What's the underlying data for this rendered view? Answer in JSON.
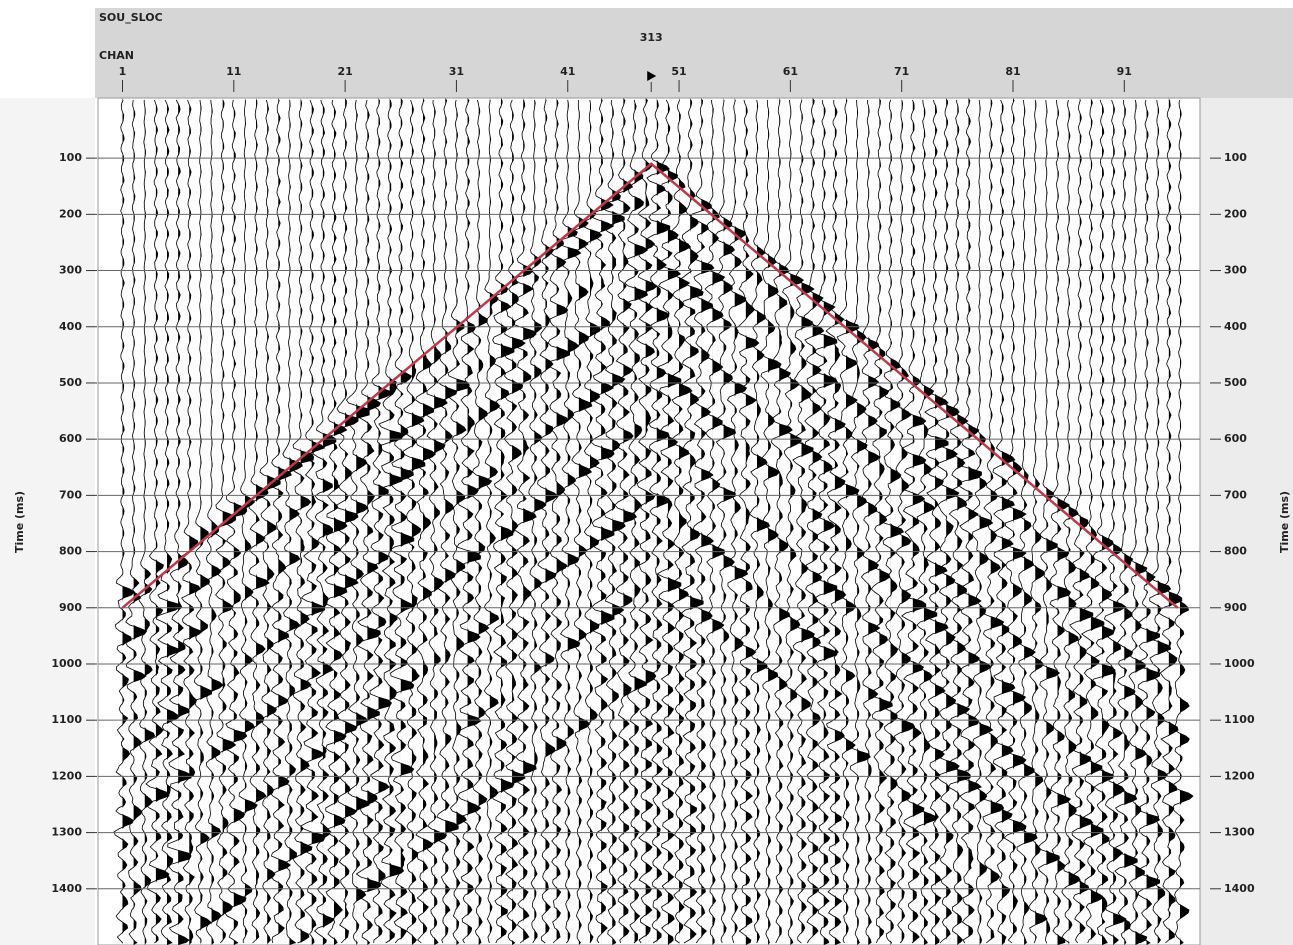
{
  "chart_data": {
    "type": "line",
    "header_label": "SOU_SLOC",
    "source_value": "313",
    "source_channel": 48.5,
    "xlabel": "CHAN",
    "ylabel": "Time (ms)",
    "xlim": [
      -1.2,
      97.8
    ],
    "ylim": [
      -7,
      1500
    ],
    "xticks": [
      1,
      11,
      21,
      31,
      41,
      51,
      61,
      71,
      81,
      91
    ],
    "yticks": [
      100,
      200,
      300,
      400,
      500,
      600,
      700,
      800,
      900,
      1000,
      1100,
      1200,
      1300,
      1400
    ],
    "grid": true,
    "series": [
      {
        "color": "#c2384a",
        "x": [
          1,
          48.5,
          95.8
        ],
        "values": [
          900,
          110,
          900
        ]
      }
    ]
  }
}
